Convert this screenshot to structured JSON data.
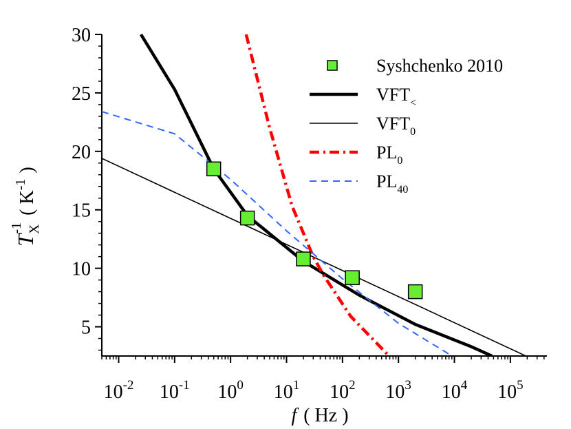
{
  "chart_data": {
    "type": "line",
    "x_label": {
      "symbol": "f",
      "unit": "( Hz )"
    },
    "y_label": {
      "symbol": "T",
      "subscript": "X",
      "superscript": "-1",
      "unit": "( K",
      "unit_superscript": "-1",
      "close": ")"
    },
    "xscale": "log",
    "xlim": [
      0.005,
      450000
    ],
    "ylim": [
      2.5,
      30
    ],
    "xticks": [
      {
        "value": 0.01,
        "label": "10",
        "exponent": "-2"
      },
      {
        "value": 0.1,
        "label": "10",
        "exponent": "-1"
      },
      {
        "value": 1,
        "label": "10",
        "exponent": "0"
      },
      {
        "value": 10,
        "label": "10",
        "exponent": "1"
      },
      {
        "value": 100,
        "label": "10",
        "exponent": "2"
      },
      {
        "value": 1000,
        "label": "10",
        "exponent": "3"
      },
      {
        "value": 10000,
        "label": "10",
        "exponent": "4"
      },
      {
        "value": 100000,
        "label": "10",
        "exponent": "5"
      }
    ],
    "yticks": [
      5,
      10,
      15,
      20,
      25,
      30
    ],
    "legend": "upper right",
    "series": [
      {
        "name": "Syshchenko 2010",
        "style": "markers",
        "color": "#66ee33",
        "x": [
          0.5,
          2,
          20,
          150,
          2000
        ],
        "values": [
          18.5,
          14.3,
          10.8,
          9.2,
          8.0
        ]
      },
      {
        "name": "VFT",
        "subscript": "<",
        "style": "solid",
        "width": 4.5,
        "color": "#000000",
        "x": [
          0.025,
          0.1,
          0.5,
          2,
          20,
          200,
          2000,
          20000,
          47000
        ],
        "values": [
          30,
          25.3,
          18.5,
          14.5,
          10.6,
          7.7,
          5.2,
          3.3,
          2.5
        ]
      },
      {
        "name": "VFT",
        "subscript": "0",
        "style": "solid",
        "width": 1.6,
        "color": "#000000",
        "x": [
          0.005,
          190000
        ],
        "values": [
          19.4,
          2.5
        ]
      },
      {
        "name": "PL",
        "subscript": "0",
        "style": "dashdot",
        "width": 4.5,
        "color": "#ff0000",
        "x": [
          1.9,
          5,
          12.6,
          30,
          46,
          140,
          680
        ],
        "values": [
          30,
          22,
          15.3,
          11,
          9.4,
          5.9,
          2.5
        ]
      },
      {
        "name": "PL",
        "subscript": "40",
        "style": "dash",
        "width": 2,
        "color": "#3366ff",
        "x": [
          0.005,
          0.1,
          1,
          10,
          100,
          1000,
          9100
        ],
        "values": [
          23.4,
          21.5,
          17.6,
          13.2,
          9.1,
          5.3,
          2.5
        ]
      }
    ]
  }
}
